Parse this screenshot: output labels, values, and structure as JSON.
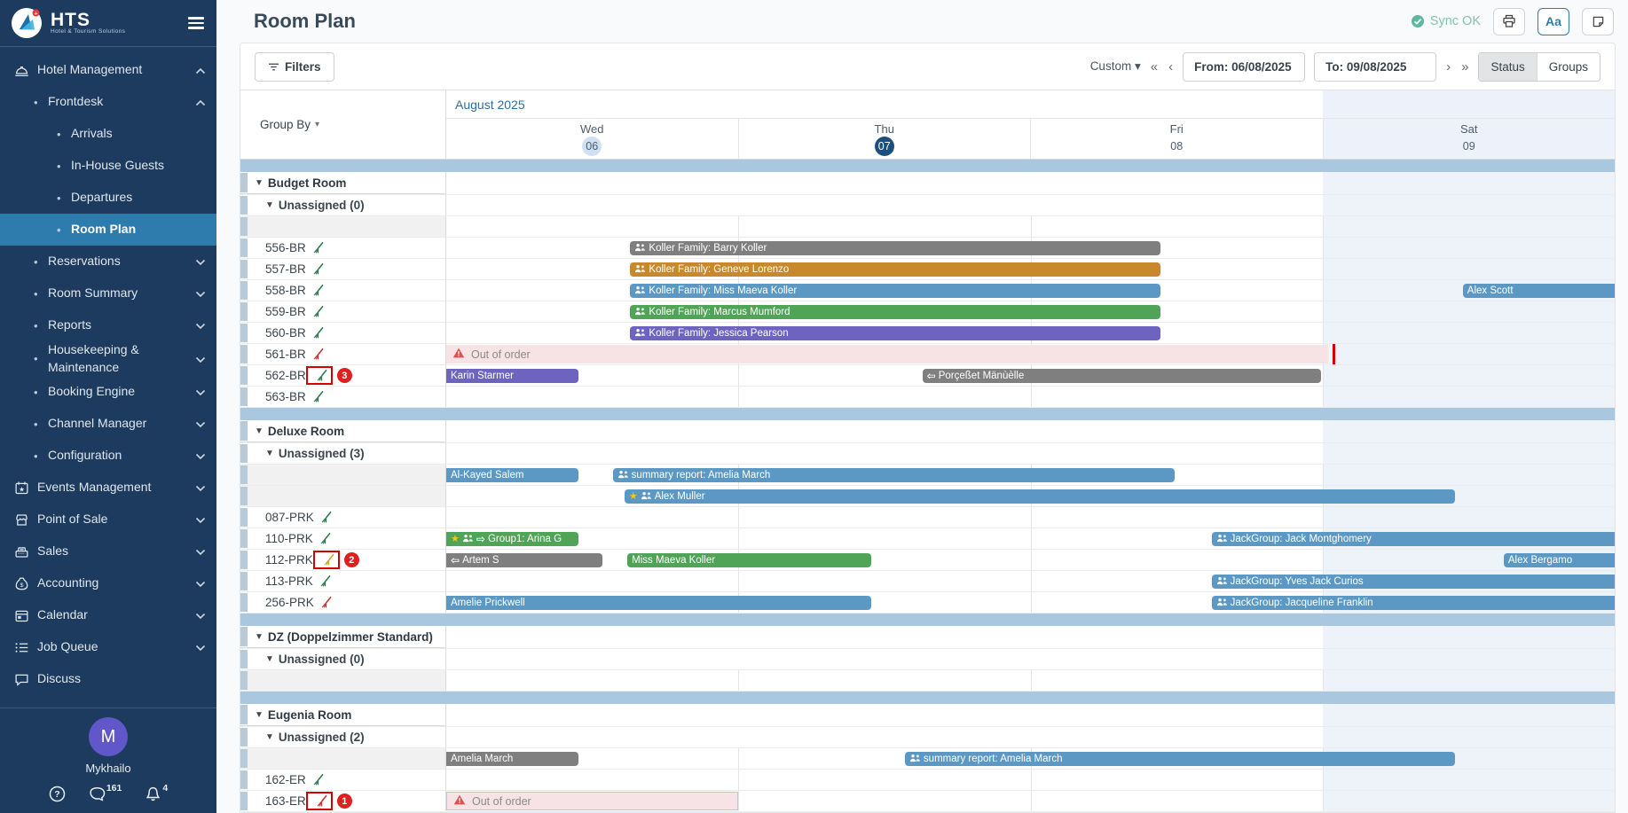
{
  "app": {
    "logo_text": "HTS",
    "logo_tagline": "Hotel & Tourism Solutions"
  },
  "sidebar": {
    "items": [
      {
        "label": "Hotel Management",
        "icon": "concierge-bell",
        "level": 0,
        "chevron": "up"
      },
      {
        "label": "Frontdesk",
        "level": 1,
        "bullet": true,
        "chevron": "up"
      },
      {
        "label": "Arrivals",
        "level": 2,
        "bullet": true
      },
      {
        "label": "In-House Guests",
        "level": 2,
        "bullet": true
      },
      {
        "label": "Departures",
        "level": 2,
        "bullet": true
      },
      {
        "label": "Room Plan",
        "level": 2,
        "bullet": true,
        "active": true
      },
      {
        "label": "Reservations",
        "level": 1,
        "bullet": true,
        "chevron": "down"
      },
      {
        "label": "Room Summary",
        "level": 1,
        "bullet": true,
        "chevron": "down"
      },
      {
        "label": "Reports",
        "level": 1,
        "bullet": true,
        "chevron": "down"
      },
      {
        "label": "Housekeeping & Maintenance",
        "level": 1,
        "bullet": true,
        "chevron": "down"
      },
      {
        "label": "Booking Engine",
        "level": 1,
        "bullet": true,
        "chevron": "down"
      },
      {
        "label": "Channel Manager",
        "level": 1,
        "bullet": true,
        "chevron": "down"
      },
      {
        "label": "Configuration",
        "level": 1,
        "bullet": true,
        "chevron": "down"
      },
      {
        "label": "Events Management",
        "icon": "calendar-star",
        "level": 0,
        "chevron": "down"
      },
      {
        "label": "Point of Sale",
        "icon": "shop",
        "level": 0,
        "chevron": "down"
      },
      {
        "label": "Sales",
        "icon": "cash-register",
        "level": 0,
        "chevron": "down"
      },
      {
        "label": "Accounting",
        "icon": "money-bag",
        "level": 0,
        "chevron": "down"
      },
      {
        "label": "Calendar",
        "icon": "calendar",
        "level": 0,
        "chevron": "down"
      },
      {
        "label": "Job Queue",
        "icon": "list",
        "level": 0,
        "chevron": "down"
      },
      {
        "label": "Discuss",
        "icon": "chat",
        "level": 0
      }
    ],
    "user": {
      "initial": "M",
      "name": "Mykhailo"
    },
    "footer": {
      "messages_count": "161",
      "notifications_count": "4"
    }
  },
  "header": {
    "title": "Room Plan",
    "sync_label": "Sync OK",
    "text_size_label": "Aa"
  },
  "toolbar": {
    "filters_label": "Filters",
    "range_preset": "Custom",
    "from_value": "From: 06/08/2025",
    "to_value": "To: 09/08/2025",
    "status_label": "Status",
    "groups_label": "Groups",
    "nav_first": "«",
    "nav_prev": "‹",
    "nav_next": "›",
    "nav_last": "»"
  },
  "grid": {
    "group_by_label": "Group By",
    "month_label": "August 2025",
    "days": [
      {
        "name": "Wed",
        "num": "06",
        "marker": "light"
      },
      {
        "name": "Thu",
        "num": "07",
        "marker": "today"
      },
      {
        "name": "Fri",
        "num": "08"
      },
      {
        "name": "Sat",
        "num": "09",
        "weekend": true
      }
    ],
    "sections": [
      {
        "name": "Budget Room",
        "rows": [
          {
            "type": "subgroup",
            "label": "Unassigned (0)"
          },
          {
            "type": "lane",
            "bars": []
          },
          {
            "type": "room",
            "label": "556-BR",
            "broom": "green",
            "bars": [
              {
                "text": "Koller Family: Barry Koller",
                "color": "gray",
                "start": 0.63,
                "end": 2.45,
                "icons": [
                  "people"
                ]
              }
            ]
          },
          {
            "type": "room",
            "label": "557-BR",
            "broom": "green",
            "bars": [
              {
                "text": "Koller Family: Geneve Lorenzo",
                "color": "orange",
                "start": 0.63,
                "end": 2.45,
                "icons": [
                  "people"
                ]
              }
            ]
          },
          {
            "type": "room",
            "label": "558-BR",
            "broom": "green",
            "bars": [
              {
                "text": "Koller Family: Miss Maeva Koller",
                "color": "blue",
                "start": 0.63,
                "end": 2.45,
                "icons": [
                  "people"
                ]
              },
              {
                "text": "Alex Scott",
                "color": "blue",
                "start": 3.48,
                "end": 4.03,
                "flat_right": true
              }
            ]
          },
          {
            "type": "room",
            "label": "559-BR",
            "broom": "green",
            "bars": [
              {
                "text": "Koller Family: Marcus Mumford",
                "color": "green",
                "start": 0.63,
                "end": 2.45,
                "icons": [
                  "people"
                ]
              }
            ]
          },
          {
            "type": "room",
            "label": "560-BR",
            "broom": "green",
            "bars": [
              {
                "text": "Koller Family: Jessica Pearson",
                "color": "purple",
                "start": 0.63,
                "end": 2.45,
                "icons": [
                  "people"
                ]
              }
            ]
          },
          {
            "type": "room",
            "label": "561-BR",
            "broom": "red",
            "highlight": true,
            "out_of_order": {
              "text": "Out of order",
              "start": 0,
              "end": 3.02
            }
          },
          {
            "type": "room",
            "label": "562-BR",
            "broom": "green",
            "broom_boxed": true,
            "badge": "3",
            "bars": [
              {
                "text": "Karin Starmer",
                "color": "purple",
                "start": 0,
                "end": 0.46,
                "flat_left": true
              },
              {
                "text": "Porçeßet Mänùèlle",
                "color": "gray",
                "start": 1.63,
                "end": 3.0,
                "icons": [
                  "arrow-left"
                ]
              }
            ]
          },
          {
            "type": "room",
            "label": "563-BR",
            "broom": "green",
            "bars": []
          }
        ]
      },
      {
        "name": "Deluxe Room",
        "rows": [
          {
            "type": "subgroup",
            "label": "Unassigned (3)"
          },
          {
            "type": "lane",
            "bars": [
              {
                "text": "Al-Kayed Salem",
                "color": "blue",
                "start": 0,
                "end": 0.46,
                "flat_left": true
              },
              {
                "text": "summary report: Amelia March",
                "color": "blue",
                "start": 0.57,
                "end": 2.5,
                "icons": [
                  "people"
                ]
              }
            ]
          },
          {
            "type": "lane",
            "bars": [
              {
                "text": "Alex Muller",
                "color": "blue",
                "start": 0.61,
                "end": 3.46,
                "icons": [
                  "star",
                  "people"
                ]
              }
            ]
          },
          {
            "type": "room",
            "label": "087-PRK",
            "broom": "green",
            "bars": []
          },
          {
            "type": "room",
            "label": "110-PRK",
            "broom": "green",
            "bars": [
              {
                "text": "Group1: Arina G",
                "color": "green",
                "start": 0,
                "end": 0.46,
                "flat_left": true,
                "icons": [
                  "star",
                  "people",
                  "arrow-right"
                ]
              },
              {
                "text": "JackGroup: Jack Montghomery",
                "color": "blue",
                "start": 2.62,
                "end": 4.03,
                "flat_right": true,
                "icons": [
                  "people"
                ]
              }
            ]
          },
          {
            "type": "room",
            "label": "112-PRK",
            "broom": "yellow",
            "broom_boxed": true,
            "badge": "2",
            "bars": [
              {
                "text": "Artem S",
                "color": "gray",
                "start": 0,
                "end": 0.54,
                "flat_left": true,
                "icons": [
                  "arrow-left"
                ]
              },
              {
                "text": "Miss Maeva Koller",
                "color": "green",
                "start": 0.62,
                "end": 1.46
              },
              {
                "text": "Alex Bergamo",
                "color": "blue",
                "start": 3.62,
                "end": 4.03,
                "flat_right": true
              }
            ]
          },
          {
            "type": "room",
            "label": "113-PRK",
            "broom": "green",
            "bars": [
              {
                "text": "JackGroup: Yves Jack Curios",
                "color": "blue",
                "start": 2.62,
                "end": 4.03,
                "flat_right": true,
                "icons": [
                  "people"
                ]
              }
            ]
          },
          {
            "type": "room",
            "label": "256-PRK",
            "broom": "red",
            "bars": [
              {
                "text": "Amelie Prickwell",
                "color": "blue",
                "start": 0,
                "end": 1.46,
                "flat_left": true
              },
              {
                "text": "JackGroup: Jacqueline Franklin",
                "color": "blue",
                "start": 2.62,
                "end": 4.03,
                "flat_right": true,
                "icons": [
                  "people"
                ]
              }
            ]
          }
        ]
      },
      {
        "name": "DZ (Doppelzimmer Standard)",
        "rows": [
          {
            "type": "subgroup",
            "label": "Unassigned (0)"
          },
          {
            "type": "lane",
            "bars": []
          }
        ]
      },
      {
        "name": "Eugenia Room",
        "rows": [
          {
            "type": "subgroup",
            "label": "Unassigned (2)"
          },
          {
            "type": "lane",
            "bars": [
              {
                "text": "Amelia March",
                "color": "gray",
                "start": 0,
                "end": 0.46,
                "flat_left": true
              },
              {
                "text": "summary report: Amelia March",
                "color": "blue",
                "start": 1.57,
                "end": 3.46,
                "icons": [
                  "people"
                ]
              }
            ]
          },
          {
            "type": "room",
            "label": "162-ER",
            "broom": "green",
            "bars": []
          },
          {
            "type": "room",
            "label": "163-ER",
            "broom": "red",
            "broom_boxed": true,
            "badge": "1",
            "out_of_order": {
              "text": "Out of order",
              "start": 0,
              "end": 1.0,
              "bordered": true
            }
          }
        ]
      }
    ]
  },
  "colors": {
    "sidebar_bg": "#1d3a5f",
    "active_item": "#2e7cad",
    "band": "#a9c7de",
    "today_circle": "#1d4f7e",
    "day_light_circle": "#cfe0f2",
    "weekend_tint": "#eef3fa",
    "bar_gray": "#7f7f7f",
    "bar_orange": "#c8882c",
    "bar_blue": "#5b99c4",
    "bar_green": "#4fa457",
    "bar_purple": "#6f63c0",
    "ooo_bg": "#f7e3e6",
    "annotation_red": "#d40000",
    "sync_green": "#5cb89e",
    "broom_green": "#2e7d4f",
    "broom_red": "#c4372f",
    "broom_yellow": "#d2a52c"
  }
}
